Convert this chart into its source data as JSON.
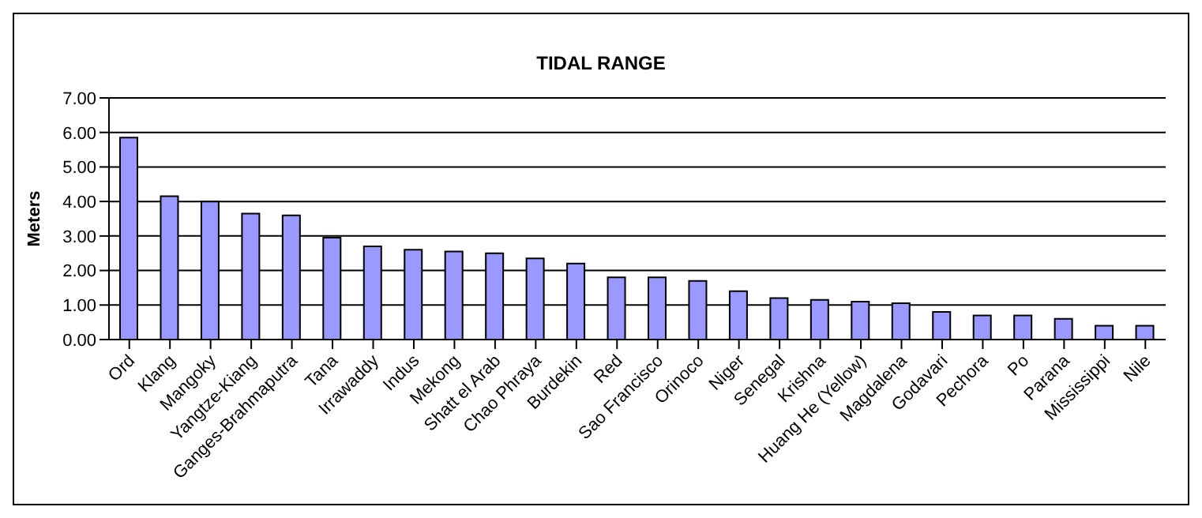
{
  "chart_data": {
    "type": "bar",
    "title": "TIDAL RANGE",
    "ylabel": "Meters",
    "categories": [
      "Ord",
      "Klang",
      "Mangoky",
      "Yangtze-Kiang",
      "Ganges-Brahmaputra",
      "Tana",
      "Irrawaddy",
      "Indus",
      "Mekong",
      "Shatt el Arab",
      "Chao Phraya",
      "Burdekin",
      "Red",
      "Sao Francisco",
      "Orinoco",
      "Niger",
      "Senegal",
      "Krishna",
      "Huang He (Yellow)",
      "Magdalena",
      "Godavari",
      "Pechora",
      "Po",
      "Parana",
      "Mississippi",
      "Nile"
    ],
    "values": [
      5.85,
      4.15,
      4.0,
      3.65,
      3.6,
      2.95,
      2.7,
      2.6,
      2.55,
      2.5,
      2.35,
      2.2,
      1.8,
      1.8,
      1.7,
      1.4,
      1.2,
      1.15,
      1.1,
      1.05,
      0.8,
      0.7,
      0.7,
      0.6,
      0.4,
      0.4
    ],
    "color": "#9999ff",
    "ylim": [
      0,
      7
    ],
    "yticks": [
      {
        "value": 0,
        "label": "0.00"
      },
      {
        "value": 1,
        "label": "1.00"
      },
      {
        "value": 2,
        "label": "2.00"
      },
      {
        "value": 3,
        "label": "3.00"
      },
      {
        "value": 4,
        "label": "4.00"
      },
      {
        "value": 5,
        "label": "5.00"
      },
      {
        "value": 6,
        "label": "6.00"
      },
      {
        "value": 7,
        "label": "7.00"
      }
    ],
    "grid": "y",
    "legend": false
  }
}
